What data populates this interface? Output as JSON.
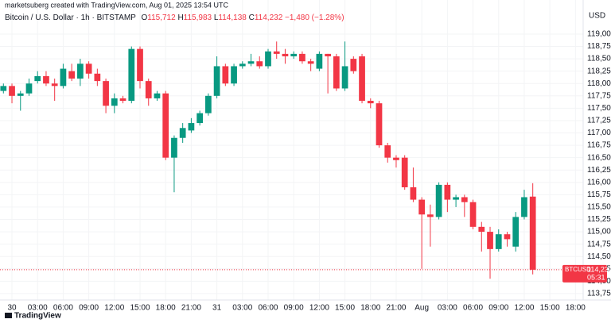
{
  "header": {
    "credit": "marketsuberg created with TradingView.com, Aug 01, 2025 13:54 UTC",
    "symbol": "Bitcoin / U.S. Dollar · 1h · BITSTAMP",
    "ohlc": [
      {
        "label": "O",
        "value": "115,712"
      },
      {
        "label": "H",
        "value": "115,983"
      },
      {
        "label": "L",
        "value": "114,138"
      },
      {
        "label": "C",
        "value": "114,232"
      }
    ],
    "change": "−1,480 (−1.28%)"
  },
  "currency": "USD",
  "price_tag": {
    "symbol": "BTCUSD",
    "price": "114,232",
    "countdown": "05:31"
  },
  "logo": "TradingView",
  "chart_data": {
    "type": "candlestick",
    "x": [
      -1,
      0,
      1,
      2,
      3,
      4,
      5,
      6,
      7,
      8,
      9,
      10,
      11,
      12,
      13,
      14,
      15,
      16,
      17,
      18,
      19,
      20,
      21,
      22,
      23,
      24,
      25,
      26,
      27,
      28,
      29,
      30,
      31,
      32,
      33,
      34,
      35,
      36,
      37,
      38,
      39,
      40,
      41,
      42,
      43,
      44,
      45,
      46,
      47,
      48,
      49,
      50,
      51,
      52,
      53,
      54,
      55,
      56,
      57,
      58,
      59,
      60,
      61
    ],
    "series": [
      {
        "up_color": "#089981",
        "down_color": "#f23645",
        "open": [
          117850,
          117950,
          117750,
          117800,
          118050,
          118150,
          118000,
          117950,
          118250,
          118100,
          118400,
          118200,
          118050,
          117550,
          117700,
          117650,
          118700,
          118050,
          117700,
          117800,
          116500,
          116900,
          117050,
          117200,
          117400,
          117750,
          118350,
          118000,
          118350,
          118400,
          118450,
          118350,
          118650,
          118600,
          118550,
          118600,
          118450,
          118300,
          118600,
          118550,
          117900,
          118500,
          118550,
          117650,
          117600,
          116750,
          116500,
          116500,
          115900,
          115650,
          115350,
          115300,
          115950,
          115650,
          115700,
          115600,
          115100,
          115000,
          114650,
          114950,
          114700,
          115300,
          115712
        ],
        "high": [
          118000,
          118000,
          117850,
          118100,
          118250,
          118250,
          118100,
          118400,
          118400,
          118500,
          118450,
          118300,
          118100,
          117800,
          117750,
          118750,
          118750,
          118100,
          117850,
          117850,
          116950,
          117200,
          117300,
          117450,
          117800,
          118550,
          118400,
          118400,
          118450,
          118600,
          118550,
          118700,
          118850,
          118700,
          118650,
          118650,
          118500,
          118650,
          118600,
          118600,
          118850,
          118550,
          118600,
          117700,
          117650,
          116800,
          116550,
          116550,
          116300,
          115700,
          115550,
          116000,
          116000,
          115750,
          115750,
          115650,
          115200,
          115100,
          115050,
          115000,
          115400,
          115850,
          115983
        ],
        "low": [
          117800,
          117600,
          117450,
          117750,
          118000,
          117950,
          117650,
          117900,
          118050,
          117950,
          118100,
          117950,
          117400,
          117400,
          117600,
          117600,
          117900,
          117550,
          117650,
          116450,
          115800,
          116800,
          117000,
          117150,
          117350,
          117700,
          117950,
          117950,
          118300,
          118350,
          118300,
          118300,
          118500,
          118400,
          118500,
          118400,
          118250,
          118250,
          117800,
          117850,
          117850,
          118200,
          117600,
          117500,
          116700,
          116400,
          116300,
          115850,
          115600,
          114250,
          114700,
          115250,
          115400,
          115500,
          115300,
          115050,
          114600,
          114050,
          114600,
          114700,
          114600,
          115250,
          114138
        ],
        "close": [
          117950,
          117750,
          117800,
          118000,
          118150,
          118000,
          117950,
          118300,
          118100,
          118400,
          118200,
          118050,
          117550,
          117700,
          117650,
          118700,
          118050,
          117700,
          117800,
          116500,
          116900,
          117100,
          117200,
          117400,
          117750,
          118350,
          118000,
          118350,
          118400,
          118450,
          118350,
          118650,
          118600,
          118550,
          118600,
          118450,
          118400,
          118600,
          118550,
          117900,
          118350,
          118250,
          117650,
          117600,
          116750,
          116500,
          116450,
          115900,
          115650,
          115350,
          115300,
          115950,
          115650,
          115700,
          115600,
          115100,
          115000,
          114650,
          114950,
          114850,
          115300,
          115700,
          114232
        ]
      }
    ],
    "last_price": 114232,
    "xlim": [
      -1.4,
      66.9
    ],
    "xticks": [
      {
        "value": 0,
        "label": "30"
      },
      {
        "value": 3,
        "label": "03:00"
      },
      {
        "value": 6,
        "label": "06:00"
      },
      {
        "value": 9,
        "label": "09:00"
      },
      {
        "value": 12,
        "label": "12:00"
      },
      {
        "value": 15,
        "label": "15:00"
      },
      {
        "value": 18,
        "label": "18:00"
      },
      {
        "value": 21,
        "label": "21:00"
      },
      {
        "value": 24,
        "label": "31"
      },
      {
        "value": 27,
        "label": "03:00"
      },
      {
        "value": 30,
        "label": "06:00"
      },
      {
        "value": 33,
        "label": "09:00"
      },
      {
        "value": 36,
        "label": "12:00"
      },
      {
        "value": 39,
        "label": "15:00"
      },
      {
        "value": 42,
        "label": "18:00"
      },
      {
        "value": 45,
        "label": "21:00"
      },
      {
        "value": 48,
        "label": "Aug"
      },
      {
        "value": 51,
        "label": "03:00"
      },
      {
        "value": 54,
        "label": "06:00"
      },
      {
        "value": 57,
        "label": "09:00"
      },
      {
        "value": 60,
        "label": "12:00"
      },
      {
        "value": 63,
        "label": "15:00"
      },
      {
        "value": 66,
        "label": "18:00"
      }
    ],
    "ylim": [
      113620,
      119690
    ],
    "yticks": [
      {
        "value": 113750,
        "label": "113,750"
      },
      {
        "value": 114000,
        "label": "114,000"
      },
      {
        "value": 114250,
        "label": "114,250"
      },
      {
        "value": 114500,
        "label": "114,500"
      },
      {
        "value": 114750,
        "label": "114,750"
      },
      {
        "value": 115000,
        "label": "115,000"
      },
      {
        "value": 115250,
        "label": "115,250"
      },
      {
        "value": 115500,
        "label": "115,500"
      },
      {
        "value": 115750,
        "label": "115,750"
      },
      {
        "value": 116000,
        "label": "116,000"
      },
      {
        "value": 116250,
        "label": "116,250"
      },
      {
        "value": 116500,
        "label": "116,500"
      },
      {
        "value": 116750,
        "label": "116,750"
      },
      {
        "value": 117000,
        "label": "117,000"
      },
      {
        "value": 117250,
        "label": "117,250"
      },
      {
        "value": 117500,
        "label": "117,500"
      },
      {
        "value": 117750,
        "label": "117,750"
      },
      {
        "value": 118000,
        "label": "118,000"
      },
      {
        "value": 118250,
        "label": "118,250"
      },
      {
        "value": 118500,
        "label": "118,500"
      },
      {
        "value": 118750,
        "label": "118,750"
      },
      {
        "value": 119000,
        "label": "119,000"
      }
    ],
    "grid": true
  }
}
